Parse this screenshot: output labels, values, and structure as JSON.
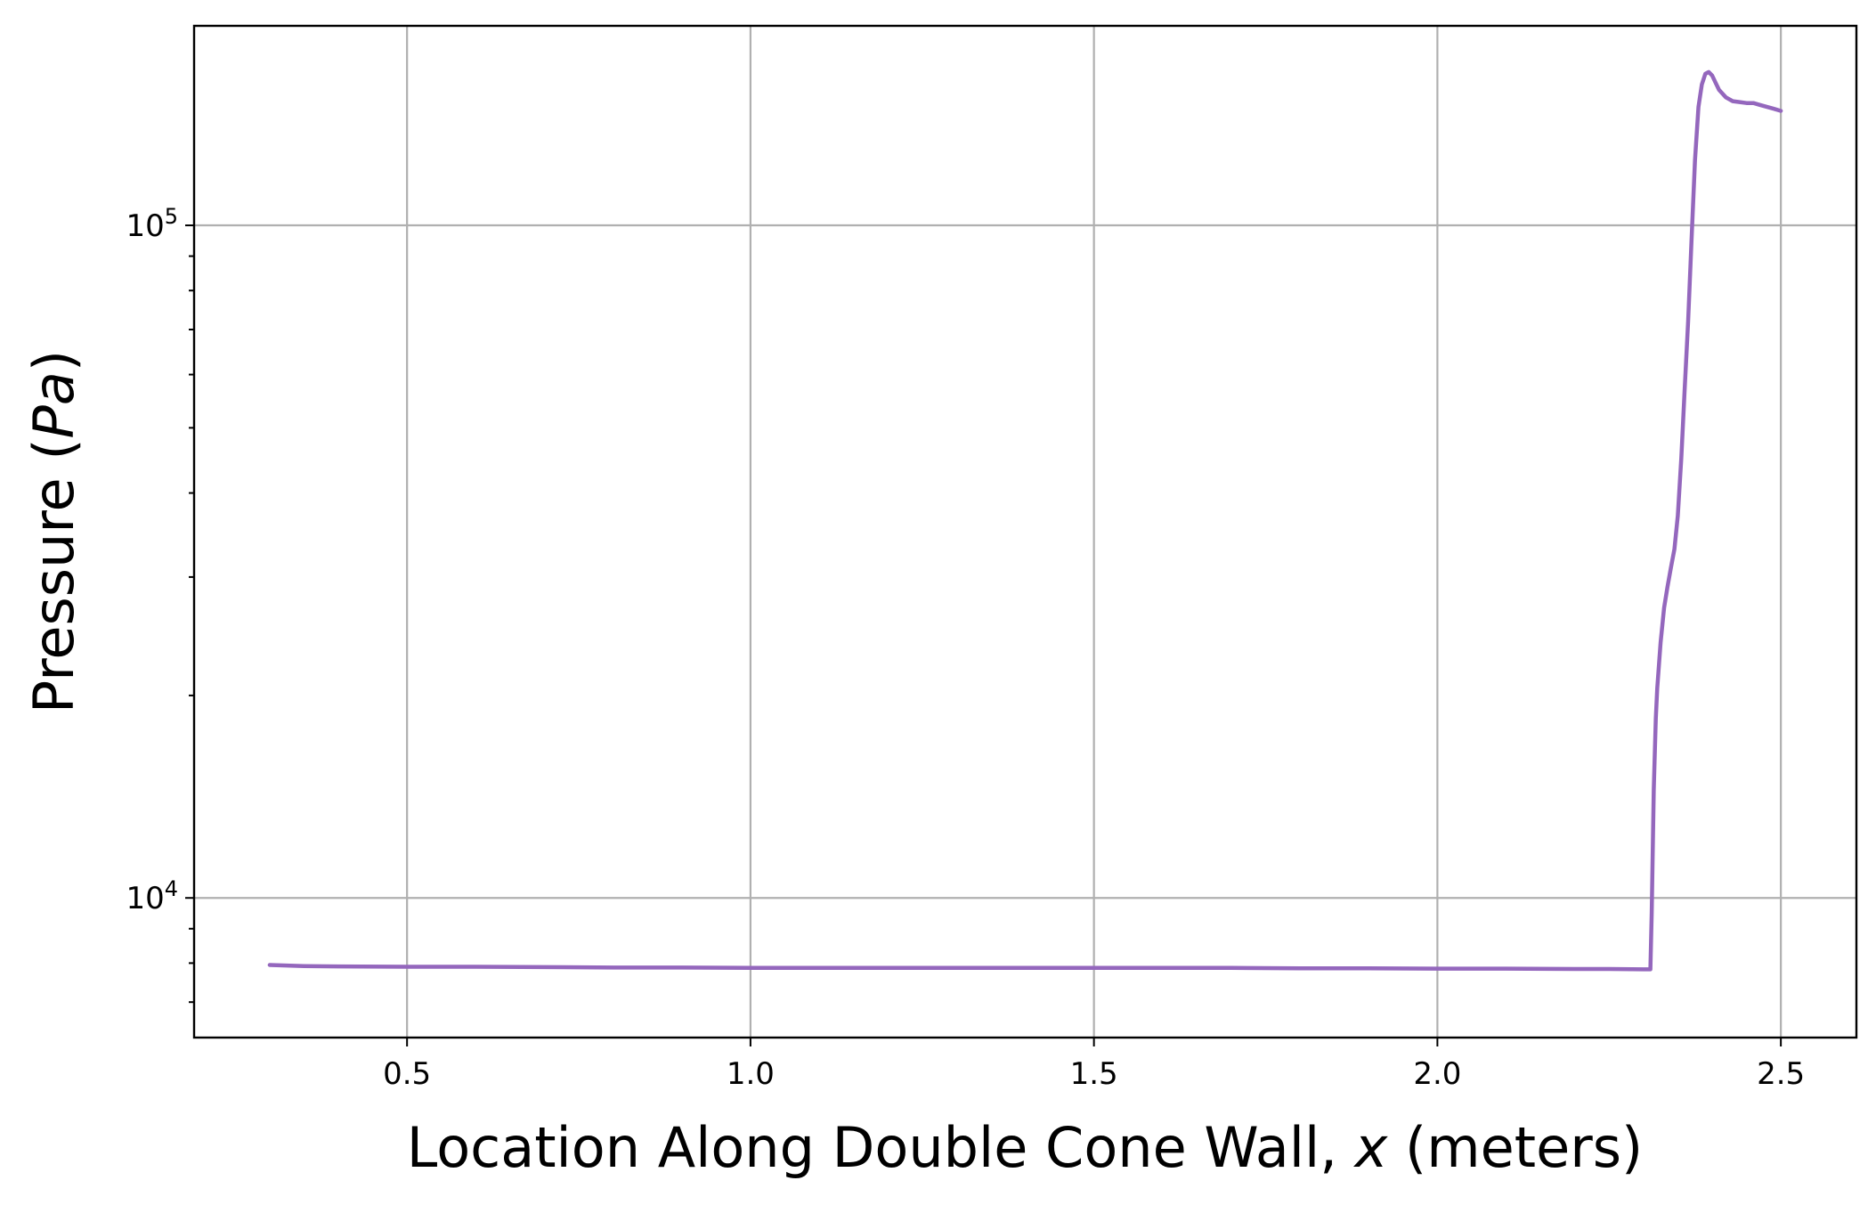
{
  "chart_data": {
    "type": "line",
    "title": "",
    "xlabel": {
      "prefix": "Location Along Double Cone Wall, ",
      "var": "x",
      "suffix": " (meters)"
    },
    "ylabel": {
      "prefix": "Pressure (",
      "var": "Pa",
      "suffix": ")"
    },
    "xlim": [
      0.19,
      2.61
    ],
    "ylim": [
      6200,
      198000
    ],
    "yscale": "log",
    "grid": true,
    "legend": "none",
    "x_ticks": [
      {
        "value": 0.5,
        "label": "0.5"
      },
      {
        "value": 1.0,
        "label": "1.0"
      },
      {
        "value": 1.5,
        "label": "1.5"
      },
      {
        "value": 2.0,
        "label": "2.0"
      },
      {
        "value": 2.5,
        "label": "2.5"
      }
    ],
    "y_ticks": [
      {
        "value": 10000,
        "base": "10",
        "exp": "4"
      },
      {
        "value": 100000,
        "base": "10",
        "exp": "5"
      }
    ],
    "y_minor_ticks": [
      7000,
      8000,
      9000,
      20000,
      30000,
      40000,
      50000,
      60000,
      70000,
      80000,
      90000
    ],
    "series": [
      {
        "name": "",
        "color": "#9467bd",
        "x": [
          0.3,
          0.35,
          0.4,
          0.5,
          0.6,
          0.7,
          0.8,
          0.9,
          1.0,
          1.1,
          1.2,
          1.3,
          1.4,
          1.5,
          1.6,
          1.7,
          1.8,
          1.9,
          2.0,
          2.1,
          2.2,
          2.25,
          2.3,
          2.31,
          2.312,
          2.315,
          2.318,
          2.32,
          2.325,
          2.33,
          2.335,
          2.34,
          2.345,
          2.35,
          2.355,
          2.36,
          2.365,
          2.37,
          2.375,
          2.38,
          2.385,
          2.39,
          2.395,
          2.4,
          2.405,
          2.41,
          2.42,
          2.43,
          2.44,
          2.45,
          2.46,
          2.47,
          2.48,
          2.49,
          2.5
        ],
        "y": [
          7950,
          7920,
          7910,
          7900,
          7900,
          7890,
          7880,
          7880,
          7870,
          7870,
          7870,
          7870,
          7870,
          7870,
          7870,
          7870,
          7860,
          7860,
          7850,
          7850,
          7840,
          7840,
          7830,
          7830,
          9500,
          14500,
          18500,
          20500,
          24000,
          27000,
          29000,
          31000,
          33000,
          37000,
          45000,
          57000,
          72000,
          95000,
          125000,
          150000,
          162000,
          168000,
          169000,
          167000,
          163000,
          159000,
          155000,
          153000,
          152500,
          152000,
          152000,
          151000,
          150000,
          149000,
          148000
        ]
      }
    ]
  }
}
